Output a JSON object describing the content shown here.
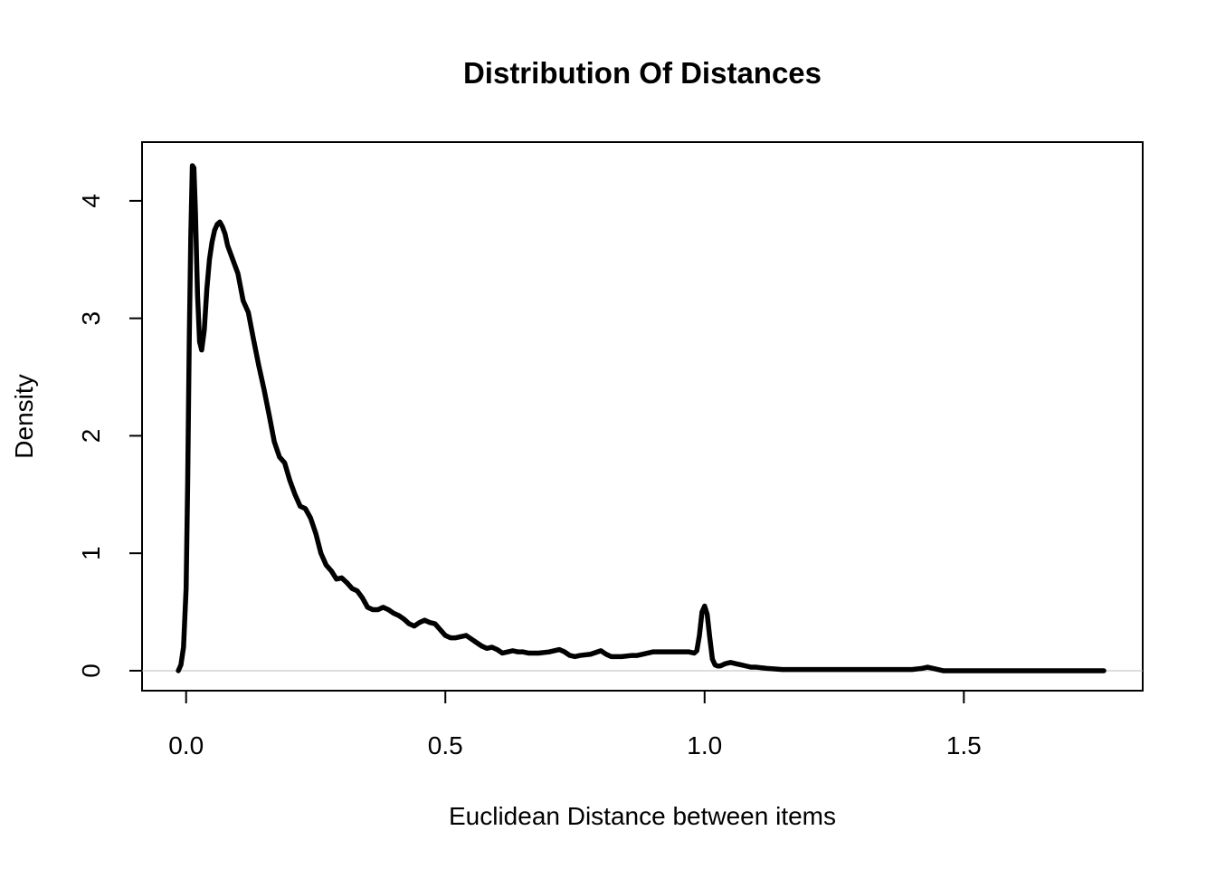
{
  "chart_data": {
    "type": "line",
    "title": "Distribution Of Distances",
    "xlabel": "Euclidean Distance between items",
    "ylabel": "Density",
    "xlim": [
      -0.085,
      1.845
    ],
    "ylim": [
      -0.17,
      4.5
    ],
    "xticks": [
      0.0,
      0.5,
      1.0,
      1.5
    ],
    "xtick_labels": [
      "0.0",
      "0.5",
      "1.0",
      "1.5"
    ],
    "yticks": [
      0,
      1,
      2,
      3,
      4
    ],
    "ytick_labels": [
      "0",
      "1",
      "2",
      "3",
      "4"
    ],
    "grid": false,
    "legend": "none",
    "baseline": 0,
    "colors": {
      "line": "#000000",
      "axis": "#000000",
      "baseline": "#bebebe"
    },
    "series": [
      {
        "x": [
          -0.015,
          -0.01,
          -0.005,
          0.0,
          0.003,
          0.006,
          0.009,
          0.012,
          0.015,
          0.018,
          0.022,
          0.026,
          0.03,
          0.035,
          0.04,
          0.045,
          0.05,
          0.055,
          0.06,
          0.065,
          0.07,
          0.075,
          0.08,
          0.09,
          0.1,
          0.11,
          0.12,
          0.13,
          0.14,
          0.15,
          0.16,
          0.17,
          0.18,
          0.19,
          0.2,
          0.21,
          0.22,
          0.23,
          0.24,
          0.25,
          0.26,
          0.27,
          0.28,
          0.29,
          0.3,
          0.31,
          0.32,
          0.33,
          0.34,
          0.35,
          0.36,
          0.37,
          0.38,
          0.39,
          0.4,
          0.41,
          0.42,
          0.43,
          0.44,
          0.45,
          0.46,
          0.47,
          0.48,
          0.49,
          0.5,
          0.51,
          0.52,
          0.53,
          0.54,
          0.55,
          0.56,
          0.57,
          0.58,
          0.59,
          0.6,
          0.61,
          0.62,
          0.63,
          0.64,
          0.65,
          0.66,
          0.67,
          0.68,
          0.7,
          0.72,
          0.73,
          0.74,
          0.75,
          0.76,
          0.78,
          0.8,
          0.81,
          0.82,
          0.84,
          0.86,
          0.87,
          0.88,
          0.9,
          0.91,
          0.92,
          0.94,
          0.95,
          0.96,
          0.97,
          0.98,
          0.985,
          0.99,
          0.995,
          1.0,
          1.005,
          1.01,
          1.015,
          1.02,
          1.025,
          1.03,
          1.035,
          1.04,
          1.05,
          1.06,
          1.07,
          1.08,
          1.09,
          1.1,
          1.12,
          1.15,
          1.2,
          1.25,
          1.3,
          1.35,
          1.4,
          1.42,
          1.43,
          1.44,
          1.46,
          1.5,
          1.6,
          1.7,
          1.77
        ],
        "values": [
          0.0,
          0.05,
          0.2,
          0.7,
          1.6,
          2.8,
          3.7,
          4.3,
          4.28,
          3.9,
          3.2,
          2.8,
          2.73,
          2.9,
          3.25,
          3.5,
          3.65,
          3.75,
          3.8,
          3.82,
          3.78,
          3.72,
          3.62,
          3.5,
          3.38,
          3.15,
          3.05,
          2.82,
          2.6,
          2.4,
          2.18,
          1.95,
          1.82,
          1.77,
          1.62,
          1.5,
          1.4,
          1.38,
          1.3,
          1.17,
          1.0,
          0.9,
          0.85,
          0.78,
          0.79,
          0.75,
          0.7,
          0.68,
          0.62,
          0.54,
          0.52,
          0.52,
          0.54,
          0.52,
          0.49,
          0.47,
          0.44,
          0.4,
          0.38,
          0.41,
          0.43,
          0.41,
          0.4,
          0.35,
          0.3,
          0.28,
          0.28,
          0.29,
          0.3,
          0.27,
          0.24,
          0.21,
          0.19,
          0.2,
          0.18,
          0.15,
          0.16,
          0.17,
          0.16,
          0.16,
          0.15,
          0.15,
          0.15,
          0.16,
          0.18,
          0.16,
          0.13,
          0.12,
          0.13,
          0.14,
          0.17,
          0.14,
          0.12,
          0.12,
          0.13,
          0.13,
          0.14,
          0.16,
          0.16,
          0.16,
          0.16,
          0.16,
          0.16,
          0.16,
          0.15,
          0.17,
          0.3,
          0.5,
          0.55,
          0.48,
          0.28,
          0.1,
          0.05,
          0.04,
          0.04,
          0.05,
          0.06,
          0.07,
          0.06,
          0.05,
          0.04,
          0.03,
          0.03,
          0.02,
          0.01,
          0.01,
          0.01,
          0.01,
          0.01,
          0.01,
          0.02,
          0.03,
          0.02,
          0.0,
          0.0,
          0.0,
          0.0,
          0.0
        ]
      }
    ]
  }
}
